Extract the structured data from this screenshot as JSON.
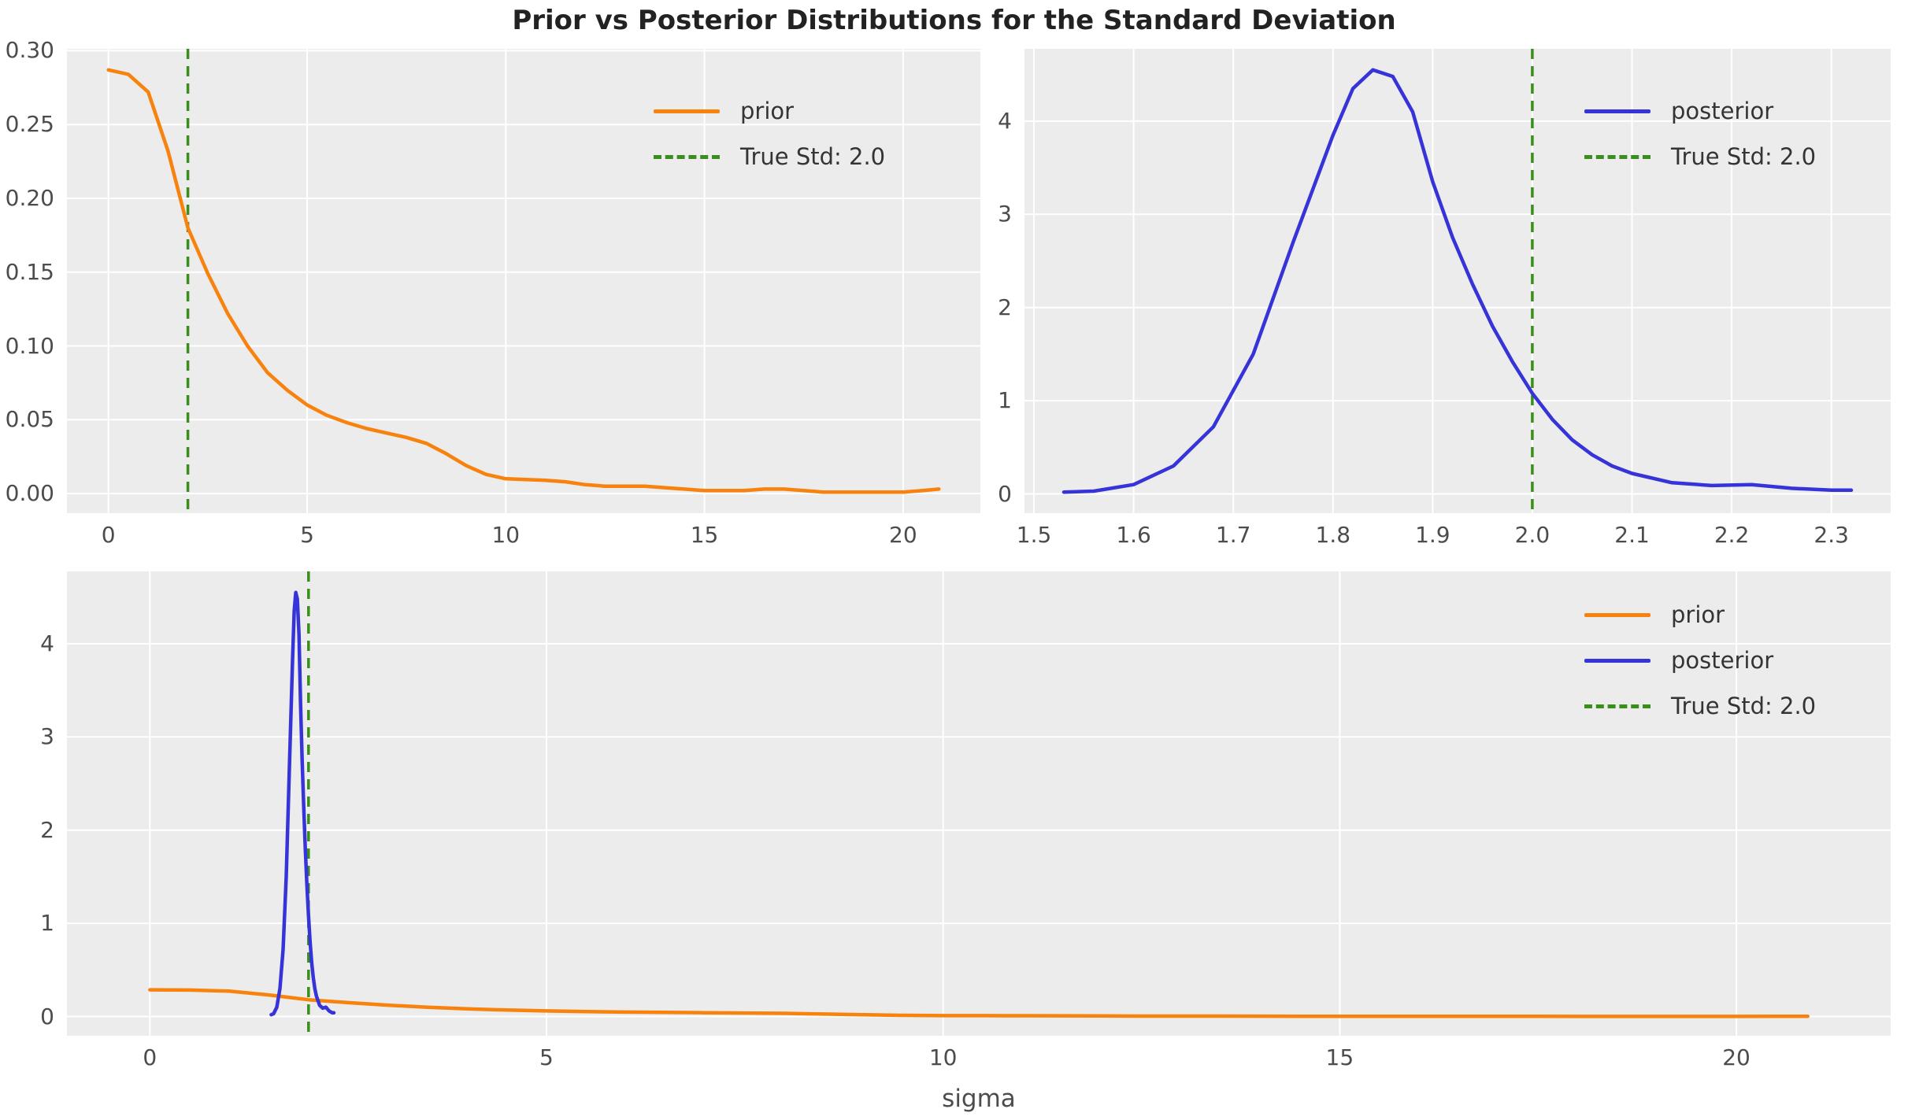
{
  "title": "Prior vs Posterior Distributions for the Standard Deviation",
  "xlabel": "sigma",
  "legend": {
    "prior": "prior",
    "posterior": "posterior",
    "true_std": "True Std: 2.0"
  },
  "colors": {
    "prior": "#f7820d",
    "posterior": "#3634d8",
    "true_std_green": "#3a8e1c",
    "axes_bg": "#ececec",
    "grid": "#ffffff",
    "tick_label": "#4c4c4c",
    "title": "#222222",
    "legend_text": "#343434"
  },
  "chart_data": {
    "type": "line",
    "title": "Prior vs Posterior Distributions for the Standard Deviation",
    "xlabel": "sigma",
    "true_std_value": 2.0,
    "series_points": {
      "prior": {
        "x": [
          0,
          0.5,
          1,
          1.5,
          2,
          2.5,
          3,
          3.5,
          4,
          4.5,
          5,
          5.5,
          6,
          6.5,
          7,
          7.5,
          8,
          8.5,
          9,
          9.5,
          10,
          10.5,
          11,
          11.5,
          12,
          12.5,
          13,
          13.5,
          14,
          14.5,
          15,
          15.5,
          16,
          16.5,
          17,
          17.5,
          18,
          18.5,
          19,
          19.5,
          20,
          20.5,
          20.9
        ],
        "y": [
          0.287,
          0.284,
          0.272,
          0.232,
          0.18,
          0.149,
          0.122,
          0.1,
          0.082,
          0.07,
          0.06,
          0.053,
          0.048,
          0.044,
          0.041,
          0.038,
          0.034,
          0.027,
          0.019,
          0.013,
          0.01,
          0.0095,
          0.009,
          0.008,
          0.006,
          0.005,
          0.005,
          0.005,
          0.004,
          0.003,
          0.002,
          0.002,
          0.002,
          0.003,
          0.003,
          0.002,
          0.001,
          0.001,
          0.001,
          0.001,
          0.001,
          0.002,
          0.003
        ]
      },
      "posterior": {
        "x": [
          1.53,
          1.56,
          1.6,
          1.64,
          1.68,
          1.72,
          1.76,
          1.8,
          1.82,
          1.84,
          1.86,
          1.88,
          1.9,
          1.92,
          1.94,
          1.96,
          1.98,
          2.0,
          2.02,
          2.04,
          2.06,
          2.08,
          2.1,
          2.14,
          2.18,
          2.22,
          2.26,
          2.3,
          2.32
        ],
        "y": [
          0.02,
          0.03,
          0.1,
          0.3,
          0.72,
          1.5,
          2.7,
          3.85,
          4.35,
          4.55,
          4.48,
          4.1,
          3.35,
          2.75,
          2.25,
          1.8,
          1.42,
          1.08,
          0.8,
          0.58,
          0.42,
          0.3,
          0.22,
          0.12,
          0.09,
          0.1,
          0.06,
          0.04,
          0.04
        ]
      }
    },
    "subplots": [
      {
        "name": "prior-subplot",
        "series": [
          "prior"
        ],
        "vline": 2.0,
        "xlim": [
          -1.045,
          21.945
        ],
        "ylim": [
          -0.0133,
          0.3013
        ],
        "xticks": [
          0,
          5,
          10,
          15,
          20
        ],
        "xtick_labels": [
          "0",
          "5",
          "10",
          "15",
          "20"
        ],
        "yticks": [
          0,
          0.05,
          0.1,
          0.15,
          0.2,
          0.25,
          0.3
        ],
        "ytick_labels": [
          "0.00",
          "0.05",
          "0.10",
          "0.15",
          "0.20",
          "0.25",
          "0.30"
        ],
        "legend_entries": [
          "prior",
          "True Std: 2.0"
        ]
      },
      {
        "name": "posterior-subplot",
        "series": [
          "posterior"
        ],
        "vline": 2.0,
        "xlim": [
          1.4905,
          2.3595
        ],
        "ylim": [
          -0.2065,
          4.7765
        ],
        "xticks": [
          1.5,
          1.6,
          1.7,
          1.8,
          1.9,
          2.0,
          2.1,
          2.2,
          2.3
        ],
        "xtick_labels": [
          "1.5",
          "1.6",
          "1.7",
          "1.8",
          "1.9",
          "2.0",
          "2.1",
          "2.2",
          "2.3"
        ],
        "yticks": [
          0,
          1,
          2,
          3,
          4
        ],
        "ytick_labels": [
          "0",
          "1",
          "2",
          "3",
          "4"
        ],
        "legend_entries": [
          "posterior",
          "True Std: 2.0"
        ]
      },
      {
        "name": "combined-subplot",
        "series": [
          "prior",
          "posterior"
        ],
        "vline": 2.0,
        "xlim": [
          -1.045,
          21.945
        ],
        "ylim": [
          -0.2065,
          4.7765
        ],
        "xticks": [
          0,
          5,
          10,
          15,
          20
        ],
        "xtick_labels": [
          "0",
          "5",
          "10",
          "15",
          "20"
        ],
        "yticks": [
          0,
          1,
          2,
          3,
          4
        ],
        "ytick_labels": [
          "0",
          "1",
          "2",
          "3",
          "4"
        ],
        "legend_entries": [
          "prior",
          "posterior",
          "True Std: 2.0"
        ]
      }
    ]
  }
}
